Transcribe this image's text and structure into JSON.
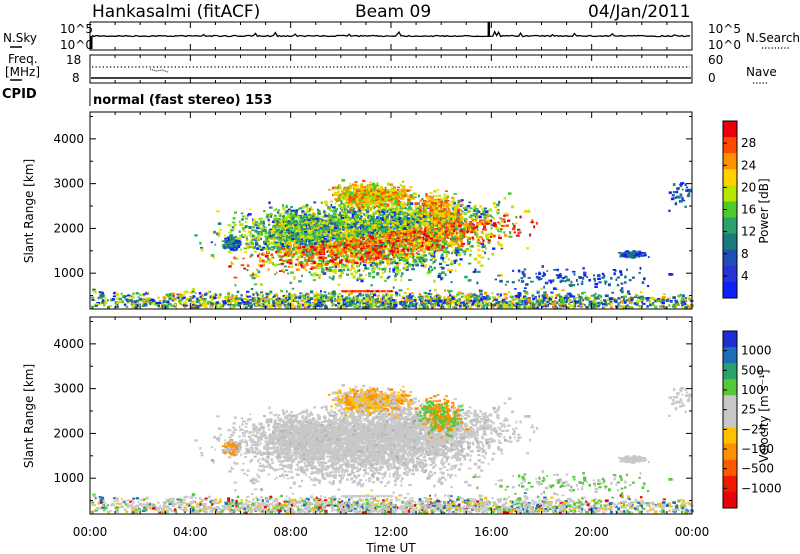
{
  "header": {
    "station": "Hankasalmi (fitACF)",
    "beam": "Beam 09",
    "date": "04/Jan/2011"
  },
  "noise_panel": {
    "left_label": "N.Sky",
    "left_ticks": [
      "10^5",
      "10^0"
    ],
    "right_label": "N.Search",
    "right_ticks": [
      "10^5",
      "10^0"
    ]
  },
  "freq_panel": {
    "left_label_1": "Freq.",
    "left_label_2": "[MHz]",
    "left_ticks": [
      "18",
      "8"
    ],
    "right_label": "Nave",
    "right_ticks": [
      "60",
      "0"
    ]
  },
  "cpid": {
    "label": "CPID",
    "text": "normal (fast stereo) 153"
  },
  "chart_data": [
    {
      "type": "heatmap",
      "title": "",
      "ylabel": "Slant Range [km]",
      "xlabel": "",
      "y_ticks": [
        "4000",
        "3000",
        "2000",
        "1000"
      ],
      "ylim": [
        200,
        4600
      ],
      "colorbar": {
        "label": "Power [dB]",
        "ticks": [
          "28",
          "24",
          "20",
          "16",
          "12",
          "8",
          "4"
        ],
        "colors": [
          "#e8000b",
          "#ff4a00",
          "#ff9100",
          "#ffd200",
          "#b7e600",
          "#4fc92b",
          "#29a36b",
          "#1c7a7a",
          "#1f4fb5",
          "#2633d6",
          "#0d1eff"
        ]
      }
    },
    {
      "type": "heatmap",
      "title": "",
      "ylabel": "Slant Range [km]",
      "xlabel": "Time UT",
      "x_ticks": [
        "00:00",
        "04:00",
        "08:00",
        "12:00",
        "16:00",
        "20:00",
        "00:00"
      ],
      "y_ticks": [
        "4000",
        "3000",
        "2000",
        "1000"
      ],
      "ylim": [
        200,
        4600
      ],
      "colorbar": {
        "label": "Velocity [m s⁻¹]",
        "ticks": [
          "1000",
          "500",
          "100",
          "25",
          "−25",
          "−100",
          "−500",
          "−1000"
        ],
        "colors": [
          "#1c2fd1",
          "#1c6eb8",
          "#29a36b",
          "#55c93a",
          "#c8c8c8",
          "#c8c8c8",
          "#ffc000",
          "#ff9000",
          "#ff5a00",
          "#f01a00",
          "#e8000b"
        ]
      }
    }
  ]
}
